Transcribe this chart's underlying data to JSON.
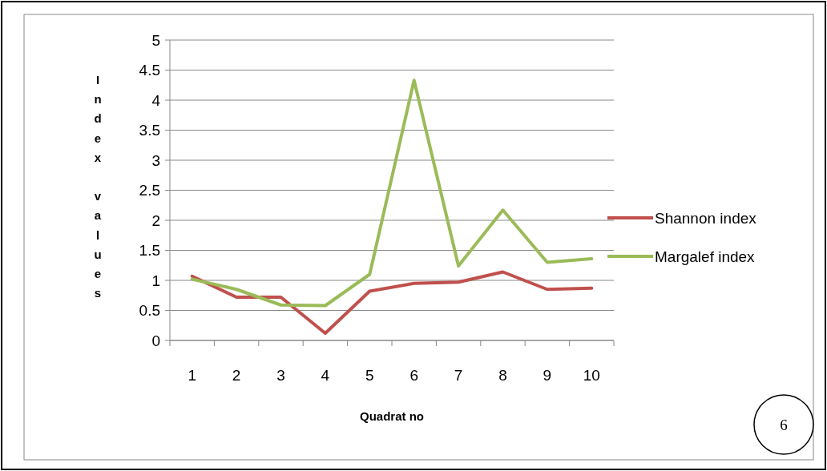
{
  "chart_data": {
    "type": "line",
    "xlabel": "Quadrat no",
    "ylabel": "Index values",
    "categories": [
      "1",
      "2",
      "3",
      "4",
      "5",
      "6",
      "7",
      "8",
      "9",
      "10"
    ],
    "series": [
      {
        "name": "Shannon index",
        "color": "#c0504d",
        "values": [
          1.07,
          0.72,
          0.72,
          0.12,
          0.82,
          0.95,
          0.97,
          1.14,
          0.85,
          0.87
        ]
      },
      {
        "name": "Margalef index",
        "color": "#9bbb59",
        "values": [
          1.02,
          0.85,
          0.59,
          0.58,
          1.1,
          4.33,
          1.24,
          2.17,
          1.3,
          1.36
        ]
      }
    ],
    "ylim": [
      0,
      5
    ],
    "yticks": [
      0,
      0.5,
      1,
      1.5,
      2,
      2.5,
      3,
      3.5,
      4,
      4.5,
      5
    ],
    "grid": "y",
    "legend": "right",
    "marker": "none",
    "line_style": "solid",
    "annotations": [
      "6"
    ]
  }
}
